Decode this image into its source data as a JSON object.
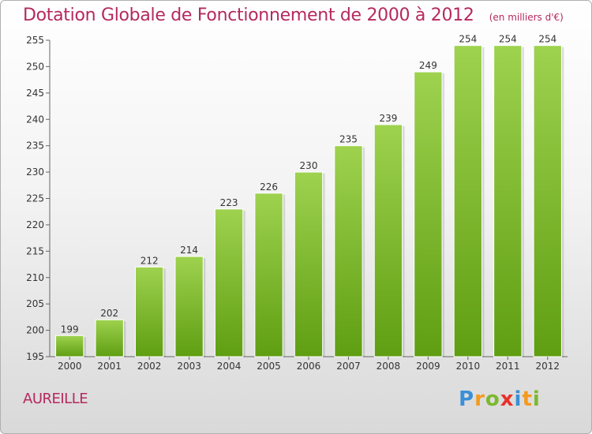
{
  "header": {
    "title": "Dotation Globale de Fonctionnement de 2000 à 2012",
    "unit_note": "(en milliers d'€)"
  },
  "footer": {
    "commune": "AUREILLE",
    "brand_letters": [
      {
        "char": "P",
        "color": "#3a8fd6"
      },
      {
        "char": "r",
        "color": "#f39a1e"
      },
      {
        "char": "o",
        "color": "#7cb82f"
      },
      {
        "char": "x",
        "color": "#e6332a"
      },
      {
        "char": "i",
        "color": "#3a8fd6"
      },
      {
        "char": "t",
        "color": "#f39a1e"
      },
      {
        "char": "i",
        "color": "#7cb82f"
      }
    ]
  },
  "chart_data": {
    "type": "bar",
    "categories": [
      "2000",
      "2001",
      "2002",
      "2003",
      "2004",
      "2005",
      "2006",
      "2007",
      "2008",
      "2009",
      "2010",
      "2011",
      "2012"
    ],
    "values": [
      199,
      202,
      212,
      214,
      223,
      226,
      230,
      235,
      239,
      249,
      254,
      254,
      254
    ],
    "ylim": [
      195,
      255
    ],
    "yticks": [
      195,
      200,
      205,
      210,
      215,
      220,
      225,
      230,
      235,
      240,
      245,
      250,
      255
    ],
    "grid": false,
    "data_labels": true,
    "colors": {
      "bar_top": "#9ed24f",
      "bar_bottom": "#5f9e12",
      "title": "#b5295e"
    }
  }
}
